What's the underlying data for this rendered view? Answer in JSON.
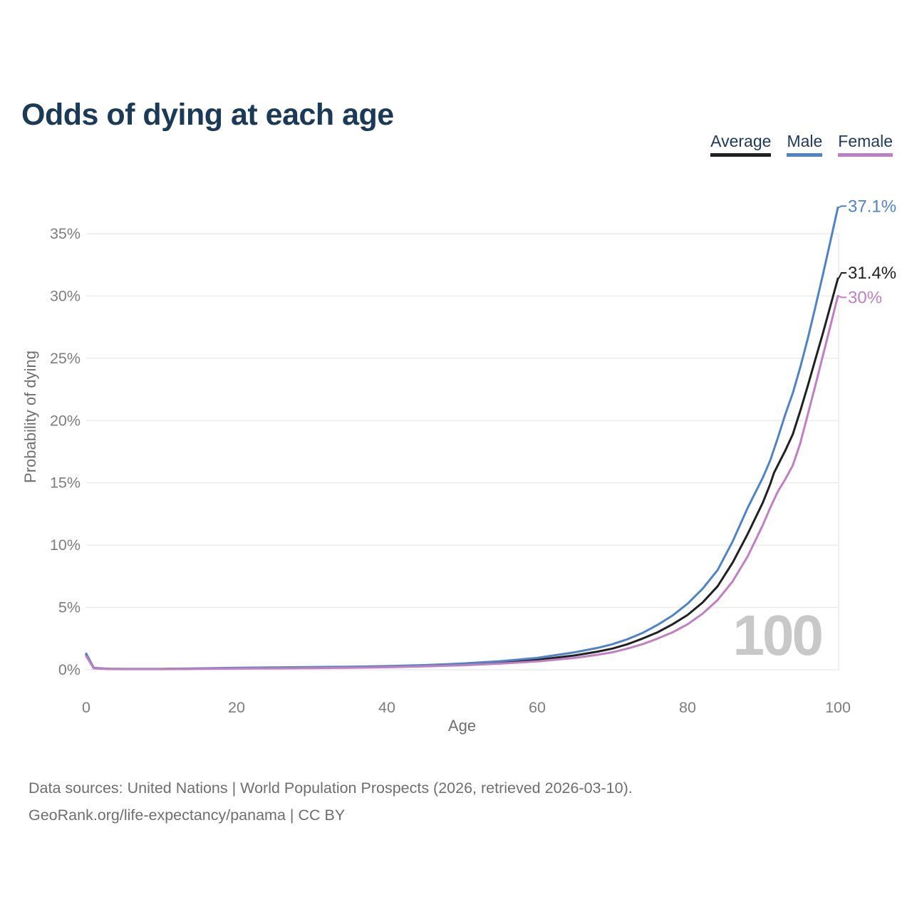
{
  "title": "Odds of dying at each age",
  "legend": {
    "items": [
      {
        "label": "Average",
        "color": "#212121"
      },
      {
        "label": "Male",
        "color": "#5083c6"
      },
      {
        "label": "Female",
        "color": "#c17fc3"
      }
    ]
  },
  "watermark": "100",
  "footer": {
    "line1": "Data sources: United Nations | World Population Prospects (2026, retrieved 2026-03-10).",
    "line2": "GeoRank.org/life-expectancy/panama | CC BY"
  },
  "chart_data": {
    "type": "line",
    "title": "Odds of dying at each age",
    "xlabel": "Age",
    "ylabel": "Probability of dying",
    "xlim": [
      0,
      100
    ],
    "ylim": [
      0,
      37.5
    ],
    "xticks": [
      0,
      20,
      40,
      60,
      80,
      100
    ],
    "yticks": [
      0,
      5,
      10,
      15,
      20,
      25,
      30,
      35
    ],
    "ytick_suffix": "%",
    "grid": "horizontal",
    "legend_position": "top-right",
    "series": [
      {
        "name": "Average",
        "color": "#212121",
        "end_label": "31.4%",
        "points": [
          [
            0,
            1.2
          ],
          [
            1,
            0.13
          ],
          [
            3,
            0.07
          ],
          [
            5,
            0.06
          ],
          [
            10,
            0.06
          ],
          [
            15,
            0.09
          ],
          [
            20,
            0.12
          ],
          [
            25,
            0.14
          ],
          [
            30,
            0.17
          ],
          [
            35,
            0.2
          ],
          [
            40,
            0.25
          ],
          [
            45,
            0.32
          ],
          [
            50,
            0.43
          ],
          [
            55,
            0.58
          ],
          [
            60,
            0.8
          ],
          [
            65,
            1.15
          ],
          [
            68,
            1.45
          ],
          [
            70,
            1.7
          ],
          [
            72,
            2.05
          ],
          [
            74,
            2.5
          ],
          [
            76,
            3.0
          ],
          [
            78,
            3.65
          ],
          [
            80,
            4.4
          ],
          [
            82,
            5.4
          ],
          [
            84,
            6.7
          ],
          [
            86,
            8.6
          ],
          [
            88,
            10.9
          ],
          [
            90,
            13.4
          ],
          [
            91,
            14.9
          ],
          [
            91.5,
            15.8
          ],
          [
            92.5,
            17.0
          ],
          [
            93,
            17.6
          ],
          [
            94,
            18.9
          ],
          [
            95,
            20.8
          ],
          [
            96,
            22.8
          ],
          [
            97,
            24.9
          ],
          [
            98,
            27.0
          ],
          [
            99,
            29.2
          ],
          [
            100,
            31.4
          ]
        ]
      },
      {
        "name": "Male",
        "color": "#5083c6",
        "end_label": "37.1%",
        "points": [
          [
            0,
            1.3
          ],
          [
            1,
            0.15
          ],
          [
            3,
            0.08
          ],
          [
            5,
            0.07
          ],
          [
            10,
            0.07
          ],
          [
            15,
            0.11
          ],
          [
            20,
            0.16
          ],
          [
            25,
            0.19
          ],
          [
            30,
            0.21
          ],
          [
            35,
            0.24
          ],
          [
            40,
            0.29
          ],
          [
            45,
            0.37
          ],
          [
            50,
            0.5
          ],
          [
            55,
            0.68
          ],
          [
            60,
            0.95
          ],
          [
            65,
            1.4
          ],
          [
            68,
            1.75
          ],
          [
            70,
            2.05
          ],
          [
            72,
            2.45
          ],
          [
            74,
            2.95
          ],
          [
            76,
            3.6
          ],
          [
            78,
            4.35
          ],
          [
            80,
            5.3
          ],
          [
            82,
            6.5
          ],
          [
            84,
            8.0
          ],
          [
            86,
            10.3
          ],
          [
            88,
            13.0
          ],
          [
            90,
            15.4
          ],
          [
            91,
            16.8
          ],
          [
            92,
            18.6
          ],
          [
            93,
            20.5
          ],
          [
            94,
            22.2
          ],
          [
            95,
            24.3
          ],
          [
            96,
            26.6
          ],
          [
            97,
            29.1
          ],
          [
            98,
            31.7
          ],
          [
            99,
            34.4
          ],
          [
            100,
            37.1
          ]
        ]
      },
      {
        "name": "Female",
        "color": "#c17fc3",
        "end_label": "30%",
        "points": [
          [
            0,
            1.1
          ],
          [
            1,
            0.11
          ],
          [
            3,
            0.06
          ],
          [
            5,
            0.05
          ],
          [
            10,
            0.05
          ],
          [
            15,
            0.07
          ],
          [
            20,
            0.09
          ],
          [
            25,
            0.11
          ],
          [
            30,
            0.13
          ],
          [
            35,
            0.16
          ],
          [
            40,
            0.2
          ],
          [
            45,
            0.27
          ],
          [
            50,
            0.36
          ],
          [
            55,
            0.49
          ],
          [
            60,
            0.67
          ],
          [
            65,
            0.95
          ],
          [
            68,
            1.2
          ],
          [
            70,
            1.4
          ],
          [
            72,
            1.7
          ],
          [
            74,
            2.05
          ],
          [
            76,
            2.5
          ],
          [
            78,
            3.0
          ],
          [
            80,
            3.65
          ],
          [
            82,
            4.5
          ],
          [
            84,
            5.6
          ],
          [
            86,
            7.1
          ],
          [
            88,
            9.1
          ],
          [
            90,
            11.6
          ],
          [
            91,
            13.0
          ],
          [
            92,
            14.3
          ],
          [
            93,
            15.3
          ],
          [
            94,
            16.4
          ],
          [
            95,
            18.2
          ],
          [
            96,
            20.5
          ],
          [
            97,
            22.8
          ],
          [
            98,
            25.2
          ],
          [
            99,
            27.6
          ],
          [
            100,
            30.0
          ]
        ]
      }
    ]
  }
}
